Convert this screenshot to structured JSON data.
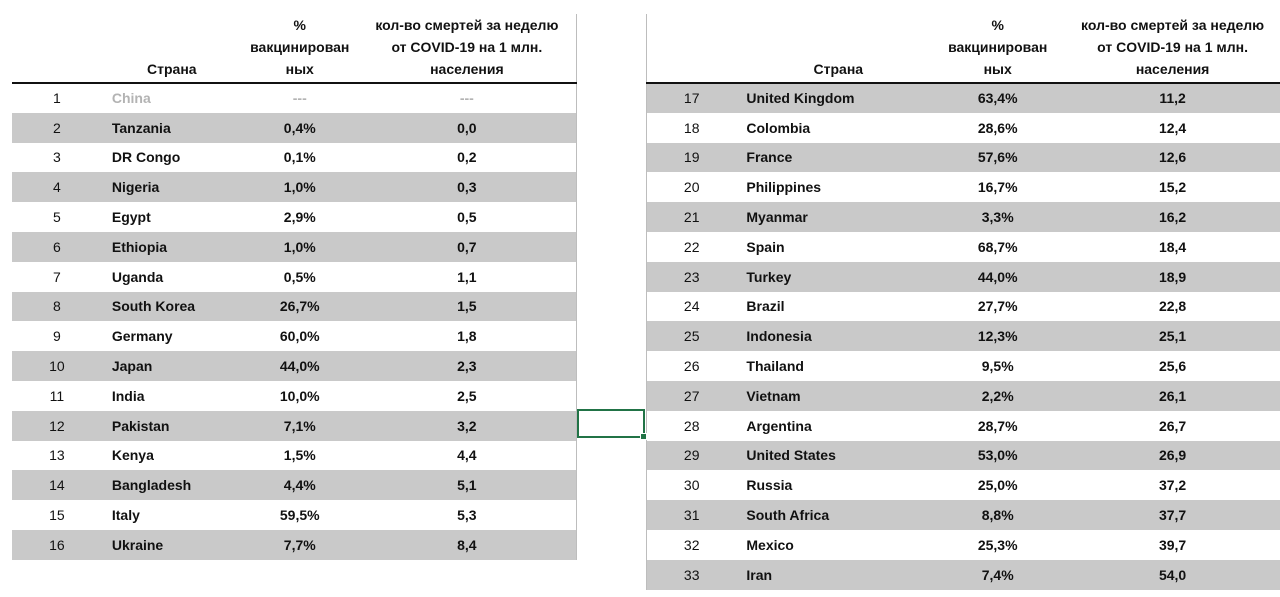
{
  "headers": {
    "country": "Страна",
    "vaccinated": "% вакцинированных",
    "vaccinated_lines": [
      "%",
      "вакцинирован",
      "ных"
    ],
    "deaths_lines": [
      "кол-во смертей за неделю",
      "от COVID-19 на 1 млн.",
      "населения"
    ]
  },
  "left_rows": [
    {
      "n": "1",
      "country": "China",
      "vacc": "---",
      "deaths": "---"
    },
    {
      "n": "2",
      "country": "Tanzania",
      "vacc": "0,4%",
      "deaths": "0,0"
    },
    {
      "n": "3",
      "country": "DR Congo",
      "vacc": "0,1%",
      "deaths": "0,2"
    },
    {
      "n": "4",
      "country": "Nigeria",
      "vacc": "1,0%",
      "deaths": "0,3"
    },
    {
      "n": "5",
      "country": "Egypt",
      "vacc": "2,9%",
      "deaths": "0,5"
    },
    {
      "n": "6",
      "country": "Ethiopia",
      "vacc": "1,0%",
      "deaths": "0,7"
    },
    {
      "n": "7",
      "country": "Uganda",
      "vacc": "0,5%",
      "deaths": "1,1"
    },
    {
      "n": "8",
      "country": "South Korea",
      "vacc": "26,7%",
      "deaths": "1,5"
    },
    {
      "n": "9",
      "country": "Germany",
      "vacc": "60,0%",
      "deaths": "1,8"
    },
    {
      "n": "10",
      "country": "Japan",
      "vacc": "44,0%",
      "deaths": "2,3"
    },
    {
      "n": "11",
      "country": "India",
      "vacc": "10,0%",
      "deaths": "2,5"
    },
    {
      "n": "12",
      "country": "Pakistan",
      "vacc": "7,1%",
      "deaths": "3,2"
    },
    {
      "n": "13",
      "country": "Kenya",
      "vacc": "1,5%",
      "deaths": "4,4"
    },
    {
      "n": "14",
      "country": "Bangladesh",
      "vacc": "4,4%",
      "deaths": "5,1"
    },
    {
      "n": "15",
      "country": "Italy",
      "vacc": "59,5%",
      "deaths": "5,3"
    },
    {
      "n": "16",
      "country": "Ukraine",
      "vacc": "7,7%",
      "deaths": "8,4"
    }
  ],
  "right_rows": [
    {
      "n": "17",
      "country": "United Kingdom",
      "vacc": "63,4%",
      "deaths": "11,2"
    },
    {
      "n": "18",
      "country": "Colombia",
      "vacc": "28,6%",
      "deaths": "12,4"
    },
    {
      "n": "19",
      "country": "France",
      "vacc": "57,6%",
      "deaths": "12,6"
    },
    {
      "n": "20",
      "country": "Philippines",
      "vacc": "16,7%",
      "deaths": "15,2"
    },
    {
      "n": "21",
      "country": "Myanmar",
      "vacc": "3,3%",
      "deaths": "16,2"
    },
    {
      "n": "22",
      "country": "Spain",
      "vacc": "68,7%",
      "deaths": "18,4"
    },
    {
      "n": "23",
      "country": "Turkey",
      "vacc": "44,0%",
      "deaths": "18,9"
    },
    {
      "n": "24",
      "country": "Brazil",
      "vacc": "27,7%",
      "deaths": "22,8"
    },
    {
      "n": "25",
      "country": "Indonesia",
      "vacc": "12,3%",
      "deaths": "25,1"
    },
    {
      "n": "26",
      "country": "Thailand",
      "vacc": "9,5%",
      "deaths": "25,6"
    },
    {
      "n": "27",
      "country": "Vietnam",
      "vacc": "2,2%",
      "deaths": "26,1"
    },
    {
      "n": "28",
      "country": "Argentina",
      "vacc": "28,7%",
      "deaths": "26,7"
    },
    {
      "n": "29",
      "country": "United States",
      "vacc": "53,0%",
      "deaths": "26,9"
    },
    {
      "n": "30",
      "country": "Russia",
      "vacc": "25,0%",
      "deaths": "37,2"
    },
    {
      "n": "31",
      "country": "South Africa",
      "vacc": "8,8%",
      "deaths": "37,7"
    },
    {
      "n": "32",
      "country": "Mexico",
      "vacc": "25,3%",
      "deaths": "39,7"
    },
    {
      "n": "33",
      "country": "Iran",
      "vacc": "7,4%",
      "deaths": "54,0"
    }
  ],
  "colors": {
    "row_shade": "#c9c9c9",
    "selection": "#217346",
    "greyed_text": "#b3b3b3"
  }
}
